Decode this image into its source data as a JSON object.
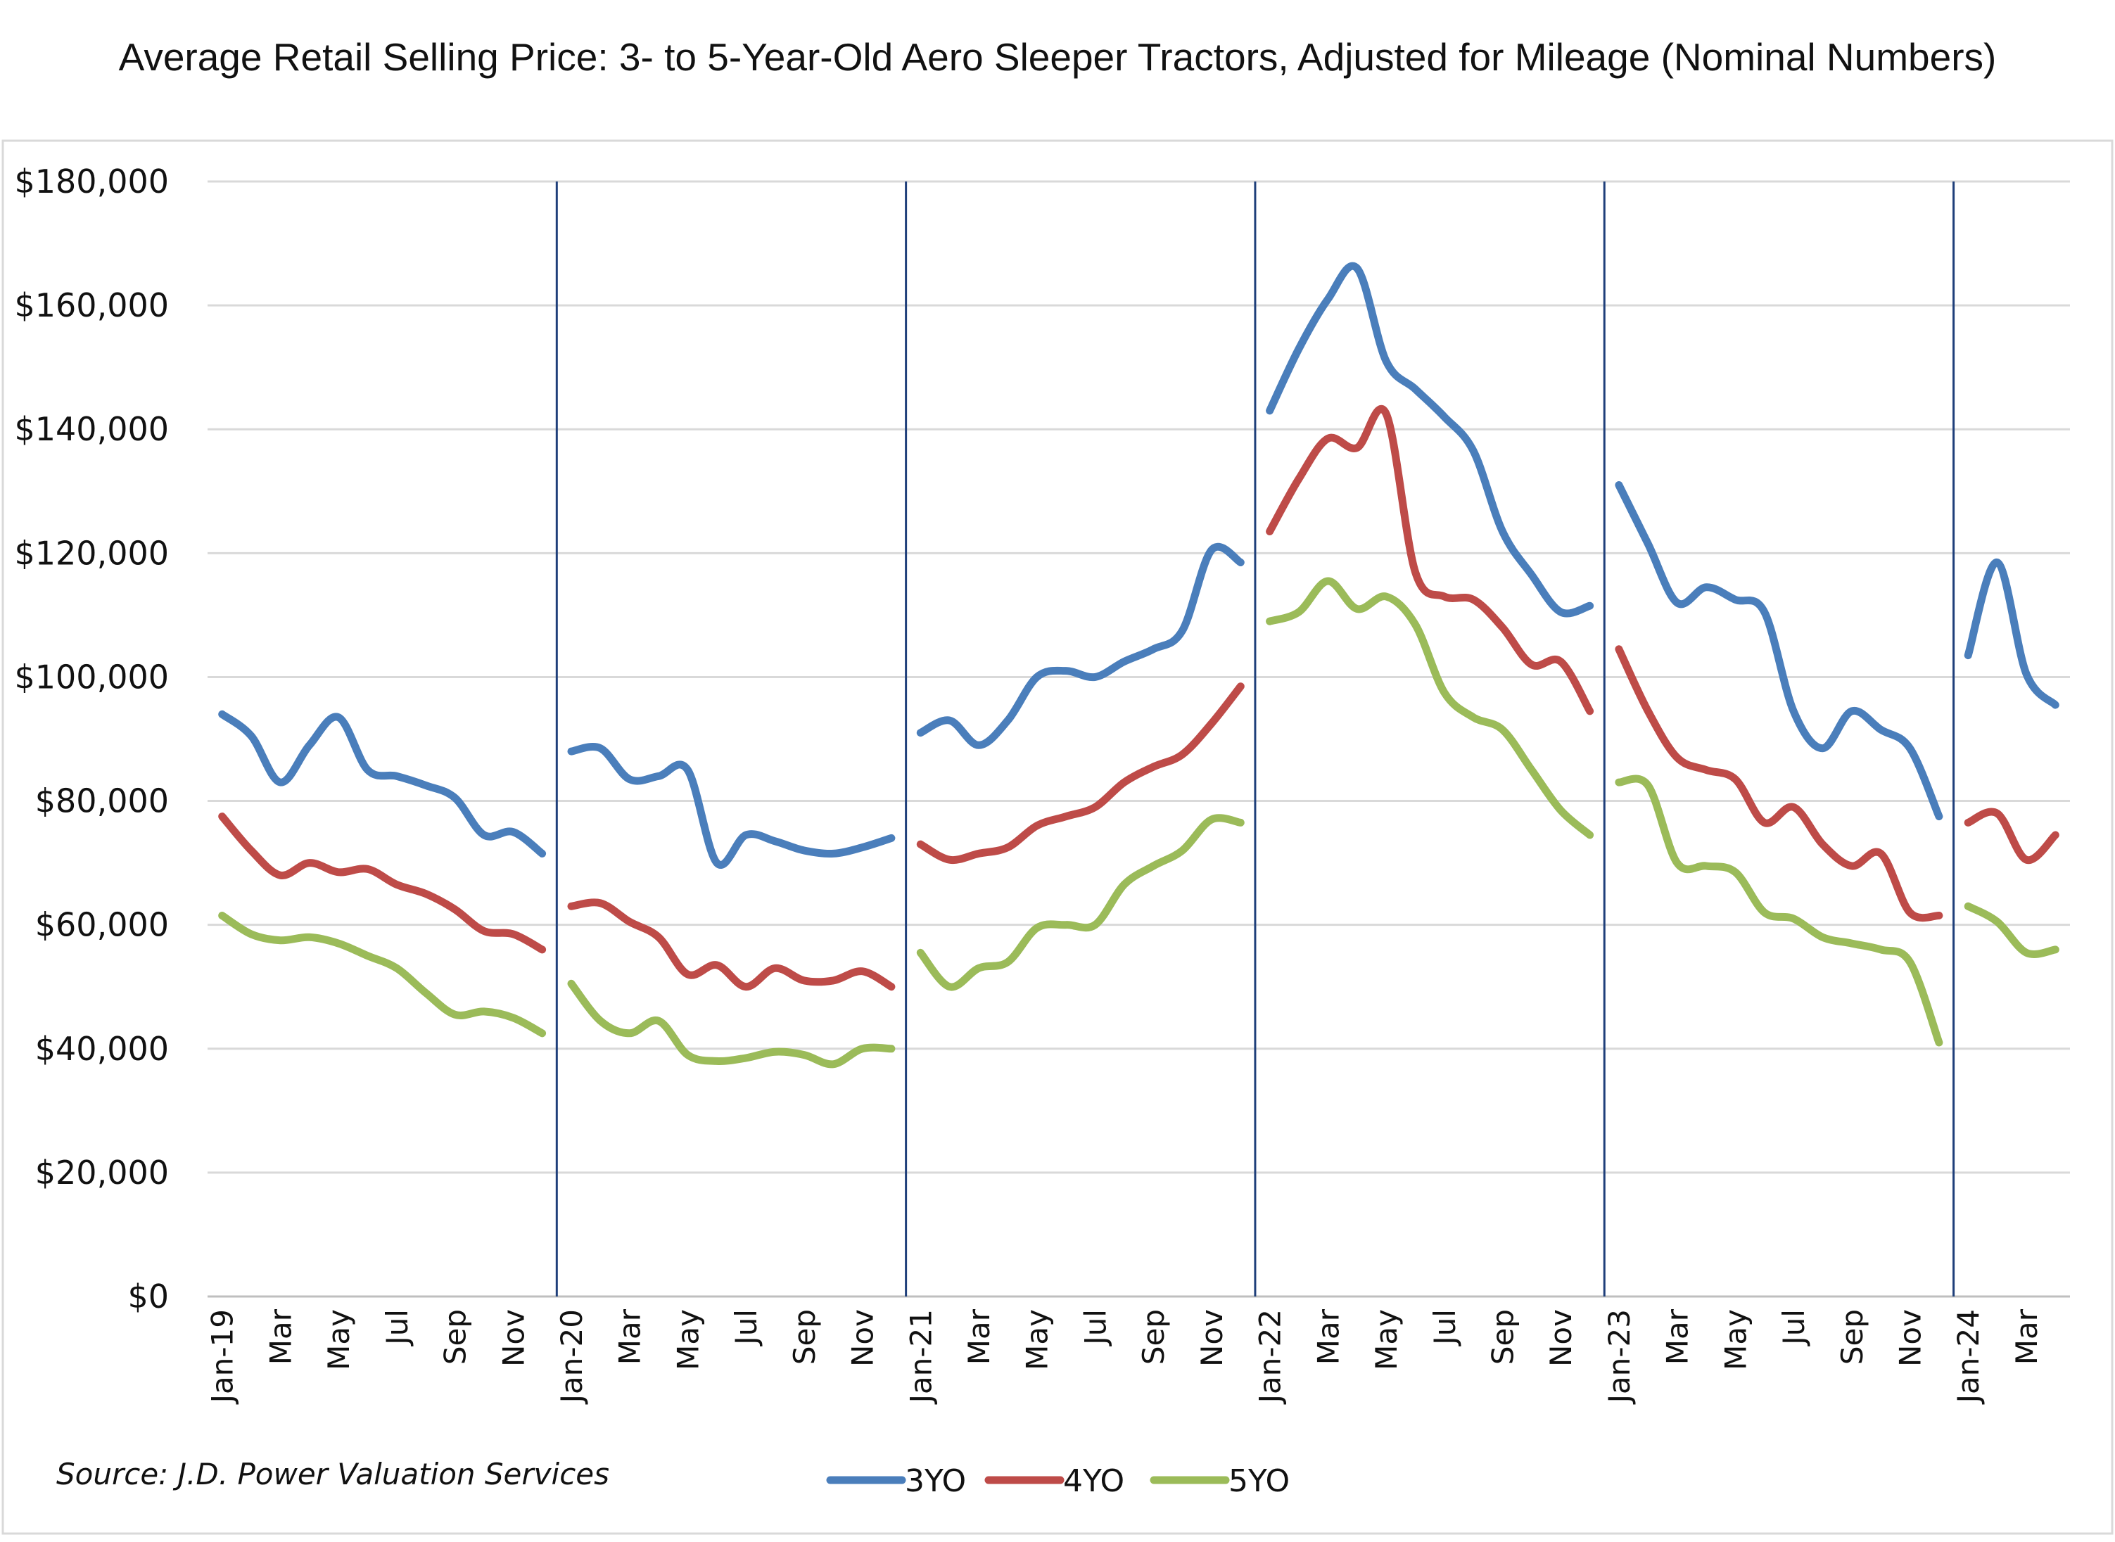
{
  "chart_data": {
    "type": "line",
    "title": "Average Retail Selling Price: 3- to 5-Year-Old Aero Sleeper Tractors, Adjusted for Mileage (Nominal Numbers)",
    "source": "Source: J.D. Power Valuation Services",
    "xlabel": "",
    "ylabel": "",
    "ylim": [
      0,
      180000
    ],
    "y_ticks": [
      0,
      20000,
      40000,
      60000,
      80000,
      100000,
      120000,
      140000,
      160000,
      180000
    ],
    "y_tick_labels": [
      "$0",
      "$20,000",
      "$40,000",
      "$60,000",
      "$80,000",
      "$100,000",
      "$120,000",
      "$140,000",
      "$160,000",
      "$180,000"
    ],
    "x_tick_labels": [
      "Jan-19",
      "Mar",
      "May",
      "Jul",
      "Sep",
      "Nov",
      "Jan-20",
      "Mar",
      "May",
      "Jul",
      "Sep",
      "Nov",
      "Jan-21",
      "Mar",
      "May",
      "Jul",
      "Sep",
      "Nov",
      "Jan-22",
      "Mar",
      "May",
      "Jul",
      "Sep",
      "Nov",
      "Jan-23",
      "Mar",
      "May",
      "Jul",
      "Sep",
      "Nov",
      "Jan-24",
      "Mar"
    ],
    "grid": true,
    "legend_position": "bottom",
    "year_separators": [
      "Jan-20",
      "Jan-21",
      "Jan-22",
      "Jan-23",
      "Jan-24"
    ],
    "segments": [
      {
        "start": 0,
        "length": 12
      },
      {
        "start": 12,
        "length": 12
      },
      {
        "start": 24,
        "length": 12
      },
      {
        "start": 36,
        "length": 12
      },
      {
        "start": 48,
        "length": 12
      },
      {
        "start": 60,
        "length": 4
      }
    ],
    "series": [
      {
        "name": "3YO",
        "color": "#4a7ebb",
        "values": [
          94000,
          90500,
          83000,
          89000,
          93500,
          85000,
          84000,
          82500,
          80500,
          74500,
          75000,
          71500,
          88000,
          88500,
          83500,
          84000,
          85000,
          70000,
          74500,
          73500,
          72000,
          71500,
          72500,
          74000,
          91000,
          93000,
          89000,
          93000,
          100000,
          101000,
          100000,
          102500,
          104500,
          107500,
          120500,
          118500,
          143000,
          153000,
          161000,
          166000,
          151000,
          146500,
          142000,
          136500,
          123500,
          116500,
          110500,
          111500,
          131000,
          121500,
          112000,
          114500,
          112500,
          110500,
          94500,
          88500,
          94500,
          91500,
          88500,
          77500,
          103500,
          118500,
          100500,
          95500
        ]
      },
      {
        "name": "4YO",
        "color": "#be4b48",
        "values": [
          77500,
          72000,
          68000,
          70000,
          68500,
          69000,
          66500,
          65000,
          62500,
          59000,
          58500,
          56000,
          63000,
          63500,
          60500,
          58000,
          52000,
          53500,
          50000,
          53000,
          51000,
          51000,
          52500,
          50000,
          73000,
          70500,
          71500,
          72500,
          76000,
          77500,
          79000,
          83000,
          85500,
          87500,
          92500,
          98500,
          123500,
          132000,
          138500,
          137000,
          142500,
          117000,
          113000,
          112500,
          108000,
          102000,
          102500,
          94500,
          104500,
          94500,
          87000,
          85000,
          83500,
          76500,
          79000,
          73000,
          69500,
          71500,
          62000,
          61500,
          76500,
          78000,
          70500,
          74500
        ]
      },
      {
        "name": "5YO",
        "color": "#9bbb59",
        "values": [
          61500,
          58500,
          57500,
          58000,
          57000,
          55000,
          53000,
          49000,
          45500,
          46000,
          45000,
          42500,
          50500,
          44500,
          42500,
          44500,
          39000,
          38000,
          38500,
          39500,
          39000,
          37500,
          40000,
          40000,
          55500,
          50000,
          53000,
          54000,
          59500,
          60000,
          60000,
          66500,
          69500,
          72000,
          77000,
          76500,
          109000,
          110500,
          115500,
          111000,
          113000,
          108500,
          97500,
          93500,
          91500,
          85000,
          78500,
          74500,
          83000,
          82500,
          70000,
          69500,
          68500,
          62000,
          61000,
          58000,
          57000,
          56000,
          54000,
          41000,
          63000,
          60500,
          55500,
          56000
        ]
      }
    ]
  }
}
